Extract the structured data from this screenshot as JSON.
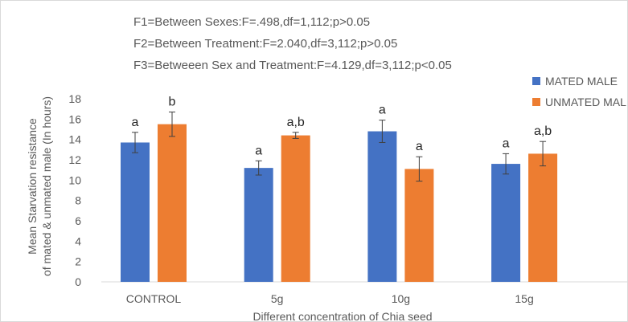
{
  "chart_data": {
    "type": "bar",
    "annotations": [
      "F1=Between Sexes:F=.498,df=1,112;p>0.05",
      "F2=Between Treatment:F=2.040,df=3,112;p>0.05",
      "F3=Betweeen Sex and Treatment:F=4.129,df=3,112;p<0.05"
    ],
    "xlabel": "Different concentration of Chia seed",
    "ylabel_lines": [
      "Mean Starvation resistance",
      "of mated & unmated male (In hours)"
    ],
    "categories": [
      "CONTROL",
      "5g",
      "10g",
      "15g"
    ],
    "yticks": [
      "0",
      "2",
      "4",
      "6",
      "8",
      "10",
      "12",
      "14",
      "16",
      "18"
    ],
    "ylim": [
      0,
      18
    ],
    "grid": false,
    "legend_position": "top-right",
    "series": [
      {
        "name": "MATED MALE",
        "color": "#4472c4",
        "values": [
          13.7,
          11.2,
          14.8,
          11.6
        ],
        "errors": [
          1.0,
          0.7,
          1.1,
          1.0
        ],
        "labels": [
          "a",
          "a",
          "a",
          "a"
        ]
      },
      {
        "name": "UNMATED MALE",
        "color": "#ed7d31",
        "values": [
          15.5,
          14.4,
          11.1,
          12.6
        ],
        "errors": [
          1.2,
          0.3,
          1.2,
          1.2
        ],
        "labels": [
          "b",
          "a,b",
          "a",
          "a,b"
        ]
      }
    ]
  }
}
